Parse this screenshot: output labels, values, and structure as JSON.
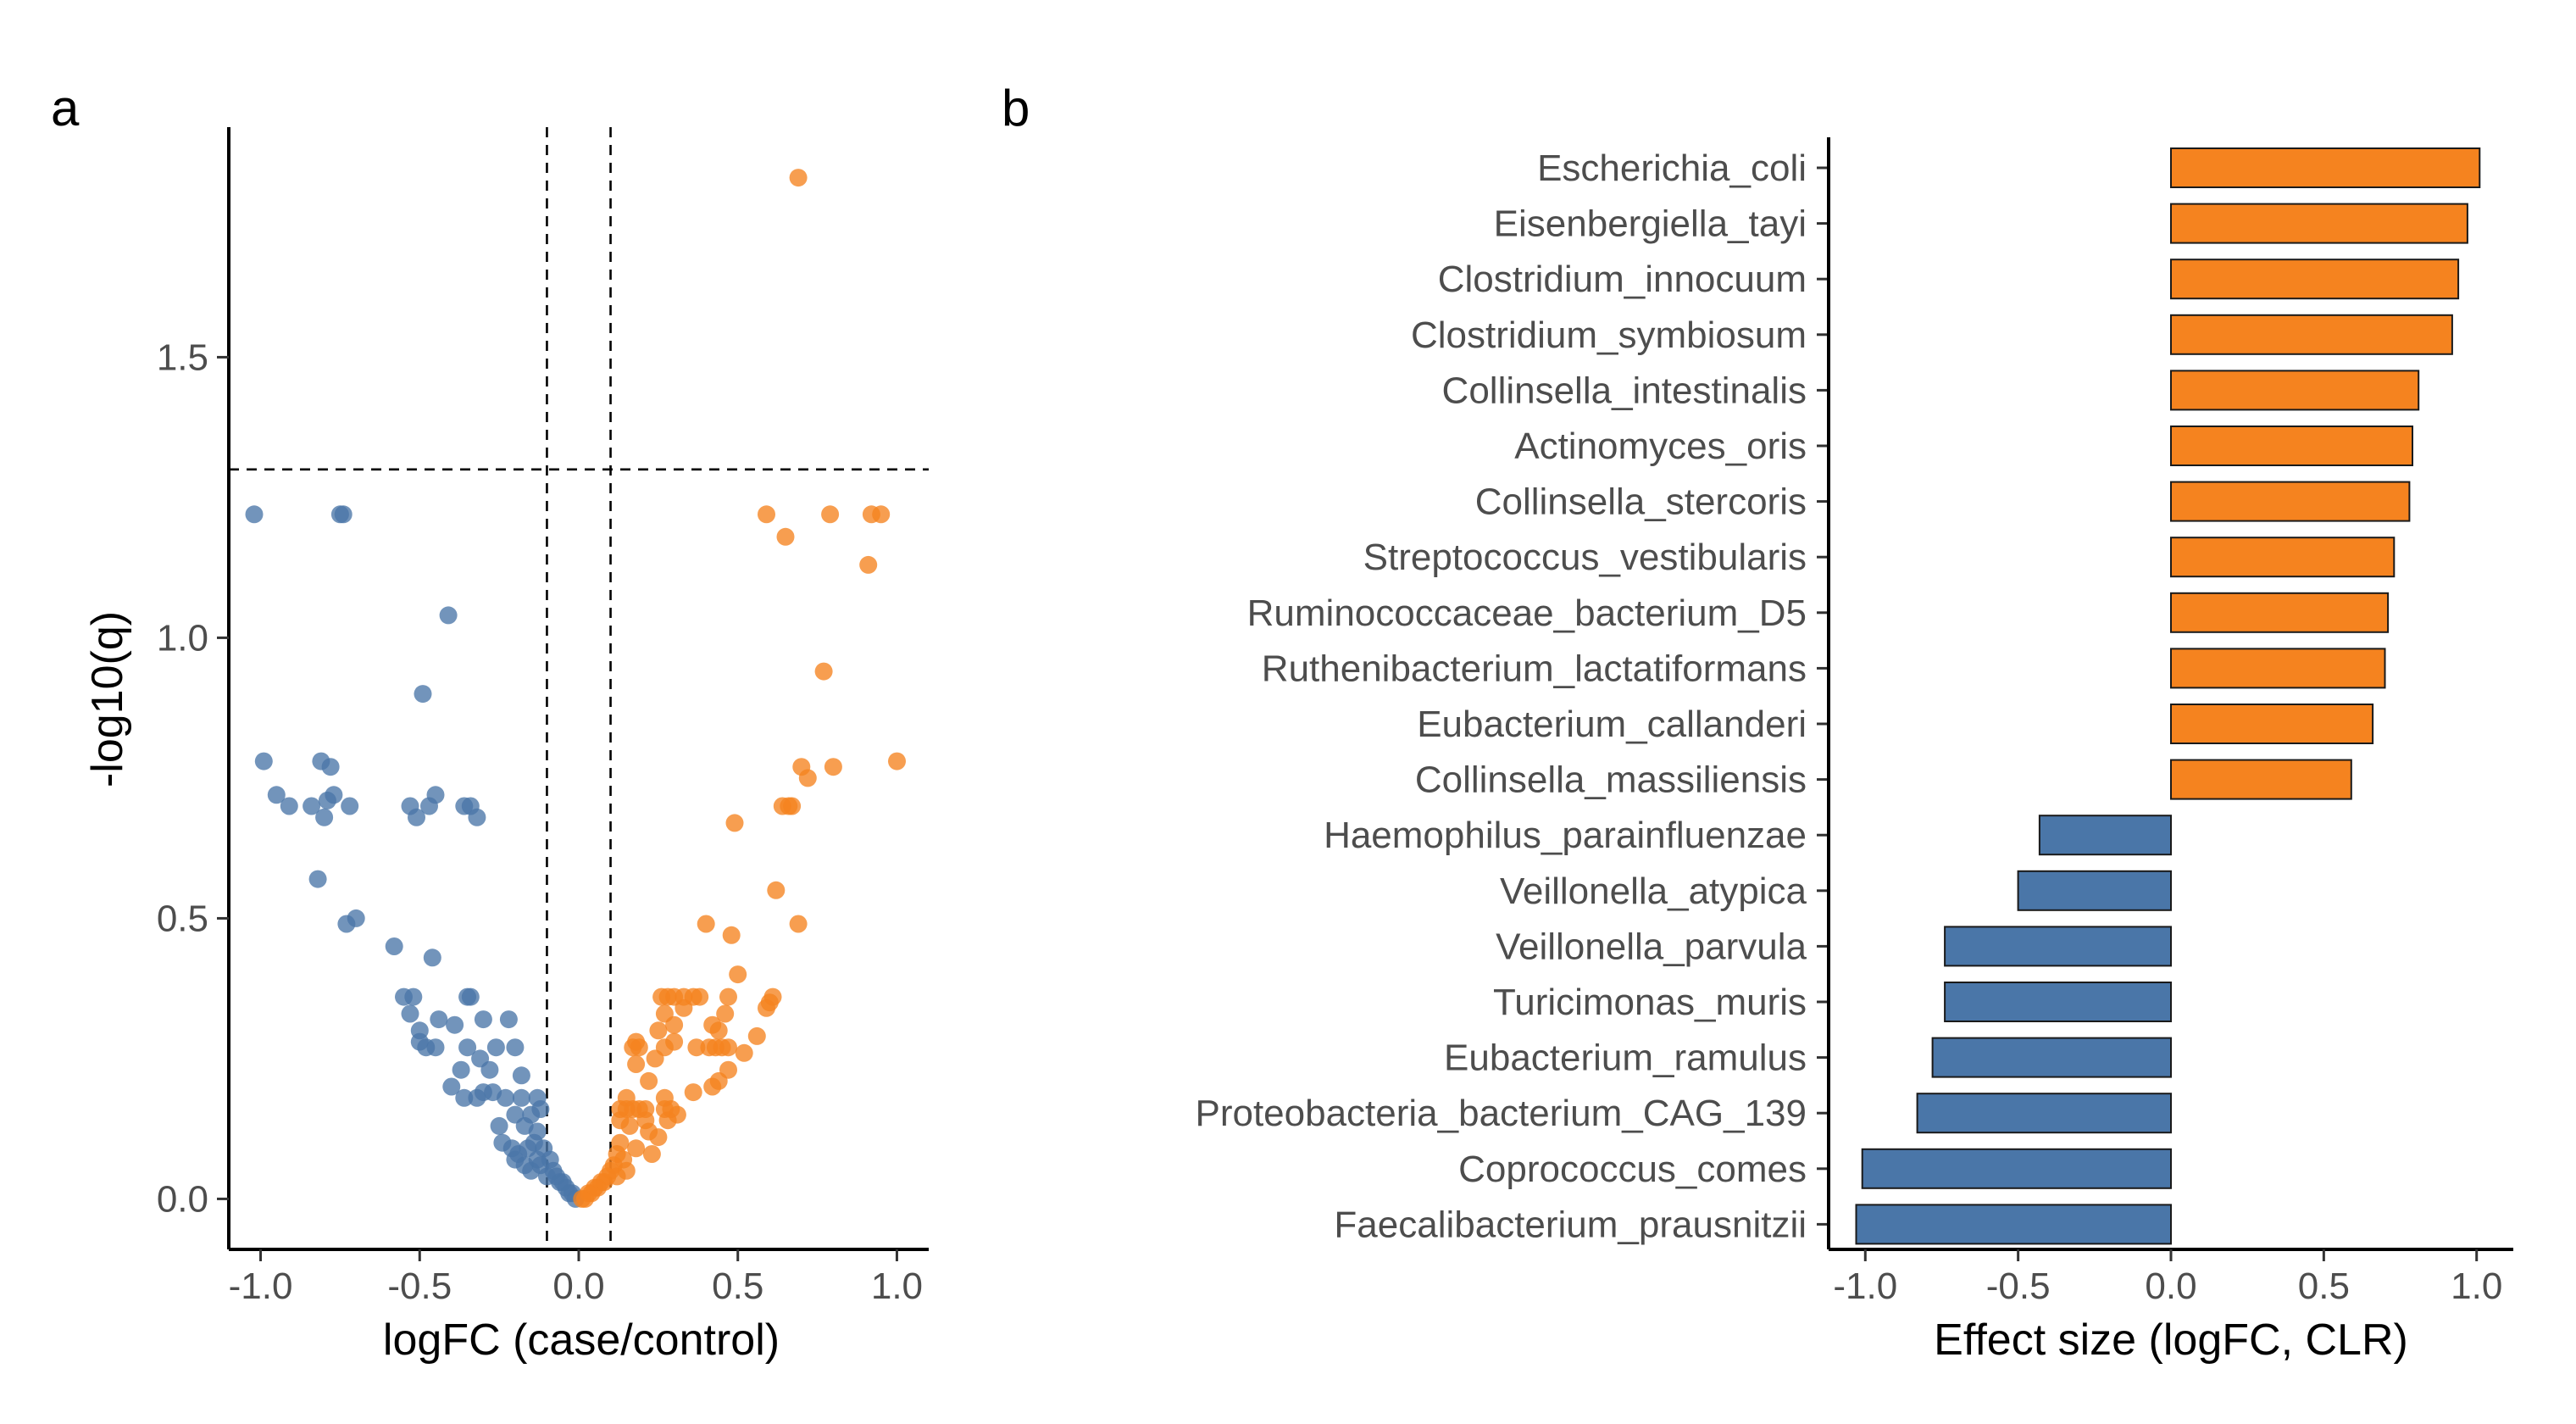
{
  "figure": {
    "colors": {
      "down": "#4a76a8",
      "up": "#f5831f",
      "axis": "#000000",
      "tick_text": "#4d4d4d"
    }
  },
  "chart_data": [
    {
      "type": "scatter",
      "panel": "a",
      "title": "",
      "xlabel": "logFC (case/control)",
      "ylabel": "-log10(q)",
      "xlim": [
        -1.1,
        1.1
      ],
      "ylim": [
        -0.09,
        1.91
      ],
      "xticks": [
        -1.0,
        -0.5,
        0.0,
        0.5,
        1.0
      ],
      "xtick_labels": [
        "-1.0",
        "-0.5",
        "0.0",
        "0.5",
        "1.0"
      ],
      "yticks": [
        0.0,
        0.5,
        1.0,
        1.5
      ],
      "ytick_labels": [
        "0.0",
        "0.5",
        "1.0",
        "1.5"
      ],
      "grid": false,
      "thresholds": {
        "vlines": [
          -0.1,
          0.1
        ],
        "hline": 1.3
      },
      "series": [
        {
          "group": "down",
          "color": "#4a76a8",
          "points": [
            [
              -1.02,
              1.22
            ],
            [
              -0.75,
              1.22
            ],
            [
              -0.74,
              1.22
            ],
            [
              -0.41,
              1.04
            ],
            [
              -0.49,
              0.9
            ],
            [
              -0.99,
              0.78
            ],
            [
              -0.81,
              0.78
            ],
            [
              -0.78,
              0.77
            ],
            [
              -0.95,
              0.72
            ],
            [
              -0.91,
              0.7
            ],
            [
              -0.84,
              0.7
            ],
            [
              -0.79,
              0.71
            ],
            [
              -0.77,
              0.72
            ],
            [
              -0.72,
              0.7
            ],
            [
              -0.8,
              0.68
            ],
            [
              -0.53,
              0.7
            ],
            [
              -0.51,
              0.68
            ],
            [
              -0.47,
              0.7
            ],
            [
              -0.45,
              0.72
            ],
            [
              -0.36,
              0.7
            ],
            [
              -0.34,
              0.7
            ],
            [
              -0.32,
              0.68
            ],
            [
              -0.82,
              0.57
            ],
            [
              -0.7,
              0.5
            ],
            [
              -0.73,
              0.49
            ],
            [
              -0.58,
              0.45
            ],
            [
              -0.46,
              0.43
            ],
            [
              -0.55,
              0.36
            ],
            [
              -0.52,
              0.36
            ],
            [
              -0.35,
              0.36
            ],
            [
              -0.34,
              0.36
            ],
            [
              -0.53,
              0.33
            ],
            [
              -0.5,
              0.3
            ],
            [
              -0.44,
              0.32
            ],
            [
              -0.39,
              0.31
            ],
            [
              -0.3,
              0.32
            ],
            [
              -0.22,
              0.32
            ],
            [
              -0.5,
              0.28
            ],
            [
              -0.48,
              0.27
            ],
            [
              -0.45,
              0.27
            ],
            [
              -0.35,
              0.27
            ],
            [
              -0.26,
              0.27
            ],
            [
              -0.2,
              0.27
            ],
            [
              -0.31,
              0.25
            ],
            [
              -0.37,
              0.23
            ],
            [
              -0.28,
              0.23
            ],
            [
              -0.18,
              0.22
            ],
            [
              -0.4,
              0.2
            ],
            [
              -0.3,
              0.19
            ],
            [
              -0.27,
              0.19
            ],
            [
              -0.36,
              0.18
            ],
            [
              -0.32,
              0.18
            ],
            [
              -0.23,
              0.18
            ],
            [
              -0.18,
              0.18
            ],
            [
              -0.13,
              0.18
            ],
            [
              -0.2,
              0.15
            ],
            [
              -0.15,
              0.15
            ],
            [
              -0.12,
              0.16
            ],
            [
              -0.25,
              0.13
            ],
            [
              -0.17,
              0.13
            ],
            [
              -0.13,
              0.12
            ],
            [
              -0.24,
              0.1
            ],
            [
              -0.21,
              0.09
            ],
            [
              -0.19,
              0.08
            ],
            [
              -0.16,
              0.09
            ],
            [
              -0.14,
              0.1
            ],
            [
              -0.11,
              0.09
            ],
            [
              -0.2,
              0.07
            ],
            [
              -0.17,
              0.06
            ],
            [
              -0.13,
              0.07
            ],
            [
              -0.09,
              0.07
            ],
            [
              -0.08,
              0.05
            ],
            [
              -0.07,
              0.04
            ],
            [
              -0.06,
              0.03
            ],
            [
              -0.1,
              0.04
            ],
            [
              -0.05,
              0.03
            ],
            [
              -0.04,
              0.02
            ],
            [
              -0.03,
              0.01
            ],
            [
              -0.02,
              0.01
            ],
            [
              -0.01,
              0.0
            ],
            [
              -0.12,
              0.06
            ],
            [
              -0.15,
              0.05
            ]
          ]
        },
        {
          "group": "up",
          "color": "#f5831f",
          "points": [
            [
              0.69,
              1.82
            ],
            [
              0.59,
              1.22
            ],
            [
              0.79,
              1.22
            ],
            [
              0.92,
              1.22
            ],
            [
              0.95,
              1.22
            ],
            [
              0.65,
              1.18
            ],
            [
              0.91,
              1.13
            ],
            [
              0.77,
              0.94
            ],
            [
              1.0,
              0.78
            ],
            [
              0.8,
              0.77
            ],
            [
              0.7,
              0.77
            ],
            [
              0.72,
              0.75
            ],
            [
              0.64,
              0.7
            ],
            [
              0.66,
              0.7
            ],
            [
              0.67,
              0.7
            ],
            [
              0.49,
              0.67
            ],
            [
              0.62,
              0.55
            ],
            [
              0.4,
              0.49
            ],
            [
              0.69,
              0.49
            ],
            [
              0.48,
              0.47
            ],
            [
              0.5,
              0.4
            ],
            [
              0.26,
              0.36
            ],
            [
              0.28,
              0.36
            ],
            [
              0.3,
              0.36
            ],
            [
              0.33,
              0.36
            ],
            [
              0.36,
              0.36
            ],
            [
              0.38,
              0.36
            ],
            [
              0.47,
              0.36
            ],
            [
              0.61,
              0.36
            ],
            [
              0.6,
              0.35
            ],
            [
              0.59,
              0.34
            ],
            [
              0.27,
              0.33
            ],
            [
              0.33,
              0.34
            ],
            [
              0.46,
              0.33
            ],
            [
              0.25,
              0.3
            ],
            [
              0.3,
              0.31
            ],
            [
              0.42,
              0.31
            ],
            [
              0.44,
              0.3
            ],
            [
              0.56,
              0.29
            ],
            [
              0.17,
              0.27
            ],
            [
              0.18,
              0.28
            ],
            [
              0.19,
              0.27
            ],
            [
              0.27,
              0.27
            ],
            [
              0.3,
              0.28
            ],
            [
              0.37,
              0.27
            ],
            [
              0.41,
              0.27
            ],
            [
              0.43,
              0.27
            ],
            [
              0.45,
              0.27
            ],
            [
              0.47,
              0.27
            ],
            [
              0.18,
              0.24
            ],
            [
              0.24,
              0.25
            ],
            [
              0.52,
              0.26
            ],
            [
              0.22,
              0.21
            ],
            [
              0.47,
              0.23
            ],
            [
              0.44,
              0.21
            ],
            [
              0.42,
              0.2
            ],
            [
              0.27,
              0.18
            ],
            [
              0.36,
              0.19
            ],
            [
              0.15,
              0.18
            ],
            [
              0.13,
              0.16
            ],
            [
              0.15,
              0.16
            ],
            [
              0.17,
              0.16
            ],
            [
              0.19,
              0.16
            ],
            [
              0.21,
              0.16
            ],
            [
              0.27,
              0.16
            ],
            [
              0.29,
              0.16
            ],
            [
              0.31,
              0.15
            ],
            [
              0.13,
              0.14
            ],
            [
              0.21,
              0.14
            ],
            [
              0.28,
              0.14
            ],
            [
              0.16,
              0.13
            ],
            [
              0.22,
              0.12
            ],
            [
              0.25,
              0.11
            ],
            [
              0.13,
              0.1
            ],
            [
              0.18,
              0.09
            ],
            [
              0.23,
              0.08
            ],
            [
              0.14,
              0.07
            ],
            [
              0.12,
              0.08
            ],
            [
              0.11,
              0.06
            ],
            [
              0.15,
              0.05
            ],
            [
              0.1,
              0.05
            ],
            [
              0.09,
              0.04
            ],
            [
              0.08,
              0.03
            ],
            [
              0.07,
              0.03
            ],
            [
              0.06,
              0.02
            ],
            [
              0.05,
              0.02
            ],
            [
              0.04,
              0.01
            ],
            [
              0.03,
              0.01
            ],
            [
              0.02,
              0.0
            ],
            [
              0.01,
              0.0
            ],
            [
              0.12,
              0.04
            ]
          ]
        }
      ]
    },
    {
      "type": "bar",
      "panel": "b",
      "orientation": "horizontal",
      "title": "",
      "xlabel": "Effect size (logFC, CLR)",
      "ylabel": "",
      "xlim": [
        -1.12,
        1.12
      ],
      "xticks": [
        -1.0,
        -0.5,
        0.0,
        0.5,
        1.0
      ],
      "xtick_labels": [
        "-1.0",
        "-0.5",
        "0.0",
        "0.5",
        "1.0"
      ],
      "grid": false,
      "categories": [
        "Escherichia_coli",
        "Eisenbergiella_tayi",
        "Clostridium_innocuum",
        "Clostridium_symbiosum",
        "Collinsella_intestinalis",
        "Actinomyces_oris",
        "Collinsella_stercoris",
        "Streptococcus_vestibularis",
        "Ruminococcaceae_bacterium_D5",
        "Ruthenibacterium_lactatiformans",
        "Eubacterium_callanderi",
        "Collinsella_massiliensis",
        "Haemophilus_parainfluenzae",
        "Veillonella_atypica",
        "Veillonella_parvula",
        "Turicimonas_muris",
        "Eubacterium_ramulus",
        "Proteobacteria_bacterium_CAG_139",
        "Coprococcus_comes",
        "Faecalibacterium_prausnitzii"
      ],
      "values": [
        1.01,
        0.97,
        0.94,
        0.92,
        0.81,
        0.79,
        0.78,
        0.73,
        0.71,
        0.7,
        0.66,
        0.59,
        -0.43,
        -0.5,
        -0.74,
        -0.74,
        -0.78,
        -0.83,
        -1.01,
        -1.03
      ]
    }
  ]
}
